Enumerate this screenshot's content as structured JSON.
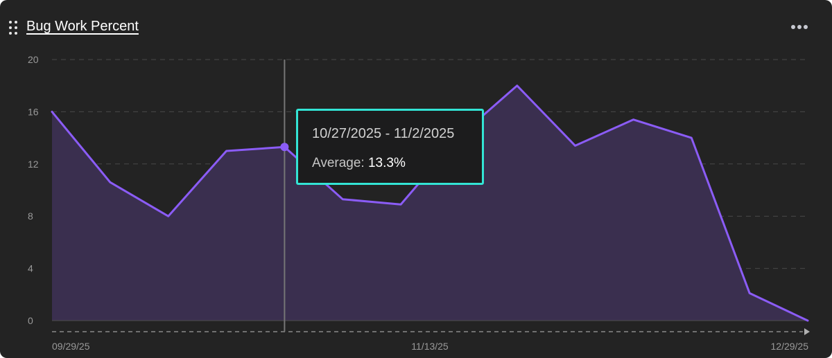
{
  "widget": {
    "title": "Bug Work Percent",
    "menu_icon": "more-horizontal-icon",
    "drag_icon": "drag-handle-icon"
  },
  "colors": {
    "background": "#232323",
    "line": "#8b5cf6",
    "area": "#3a2f4f",
    "tooltip_border": "#33e4d5",
    "crosshair": "#767676",
    "grid": "#4a4a4a",
    "axis_text": "#9a9a9a"
  },
  "tooltip": {
    "range": "10/27/2025 - 11/2/2025",
    "average_label": "Average:",
    "average_value": "13.3%"
  },
  "chart_data": {
    "type": "area",
    "title": "Bug Work Percent",
    "xlabel": "",
    "ylabel": "",
    "x_tick_labels": [
      "09/29/25",
      "11/13/25",
      "12/29/25"
    ],
    "y_ticks": [
      0,
      4,
      8,
      12,
      16,
      20
    ],
    "ylim": [
      0,
      20
    ],
    "grid": true,
    "highlight_index": 4,
    "series": [
      {
        "values": [
          16.0,
          10.6,
          8.0,
          13.0,
          13.3,
          9.3,
          8.9,
          14.1,
          18.0,
          13.4,
          15.4,
          14.0,
          2.1,
          0.0
        ]
      }
    ]
  }
}
